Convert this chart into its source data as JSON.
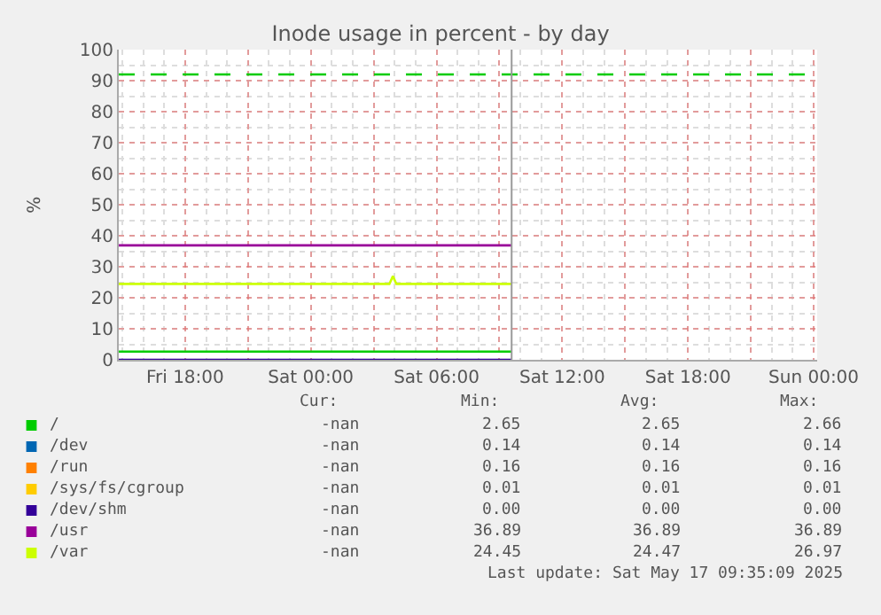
{
  "chart_data": {
    "type": "line",
    "title": "Inode usage in percent - by day",
    "ylabel": "%",
    "xlim": [
      "2025-05-16T14:50",
      "2025-05-18T00:10"
    ],
    "xticks": [
      {
        "value": "2025-05-16T18:00",
        "label": "Fri 18:00"
      },
      {
        "value": "2025-05-16T21:00",
        "label": null
      },
      {
        "value": "2025-05-17T00:00",
        "label": "Sat 00:00"
      },
      {
        "value": "2025-05-17T03:00",
        "label": null
      },
      {
        "value": "2025-05-17T06:00",
        "label": "Sat 06:00"
      },
      {
        "value": "2025-05-17T09:00",
        "label": null
      },
      {
        "value": "2025-05-17T12:00",
        "label": "Sat 12:00"
      },
      {
        "value": "2025-05-17T15:00",
        "label": null
      },
      {
        "value": "2025-05-17T18:00",
        "label": "Sat 18:00"
      },
      {
        "value": "2025-05-17T21:00",
        "label": null
      },
      {
        "value": "2025-05-18T00:00",
        "label": "Sun 00:00"
      }
    ],
    "ylim": [
      0,
      100
    ],
    "yticks": [
      0,
      10,
      20,
      30,
      40,
      50,
      60,
      70,
      80,
      90,
      100
    ],
    "grid": true,
    "legend": "bottom",
    "line_style": "solid",
    "marker": "none",
    "series": [
      {
        "name": "/",
        "color": "#00cc00",
        "x": [
          "2025-05-16T14:50",
          "2025-05-17T09:35"
        ],
        "values": [
          2.65,
          2.65
        ]
      },
      {
        "name": "/dev",
        "color": "#0066b3",
        "values": [
          null
        ]
      },
      {
        "name": "/run",
        "color": "#ff8000",
        "values": [
          null
        ]
      },
      {
        "name": "/sys/fs/cgroup",
        "color": "#ffcc00",
        "values": [
          null
        ]
      },
      {
        "name": "/dev/shm",
        "color": "#330099",
        "x": [
          "2025-05-16T14:50",
          "2025-05-17T09:35"
        ],
        "values": [
          0.0,
          0.0
        ]
      },
      {
        "name": "/usr",
        "color": "#990099",
        "x": [
          "2025-05-16T14:50",
          "2025-05-17T09:35"
        ],
        "values": [
          36.89,
          36.89
        ]
      },
      {
        "name": "/var",
        "color": "#ccff00",
        "x": [
          "2025-05-16T14:50",
          "2025-05-17T03:45",
          "2025-05-17T03:55",
          "2025-05-17T04:05",
          "2025-05-17T09:35"
        ],
        "values": [
          24.45,
          24.45,
          26.97,
          24.45,
          24.45
        ]
      }
    ],
    "ref_lines": [
      {
        "axis": "y",
        "value": 92,
        "color": "#00cc00",
        "line_style": "dashed"
      },
      {
        "axis": "x",
        "value": "2025-05-17T09:35",
        "color": "#999999",
        "line_style": "solid"
      }
    ],
    "annotations": [
      "Cur:",
      "Min:",
      "Avg:",
      "Max:",
      "-nan",
      "2.65",
      "2.65",
      "2.66",
      "-nan",
      "0.14",
      "0.14",
      "0.14",
      "-nan",
      "0.16",
      "0.16",
      "0.16",
      "-nan",
      "0.01",
      "0.01",
      "0.01",
      "-nan",
      "0.00",
      "0.00",
      "0.00",
      "-nan",
      "36.89",
      "36.89",
      "36.89",
      "-nan",
      "24.45",
      "24.47",
      "26.97",
      "Last update: Sat May 17 09:35:09 2025"
    ]
  }
}
